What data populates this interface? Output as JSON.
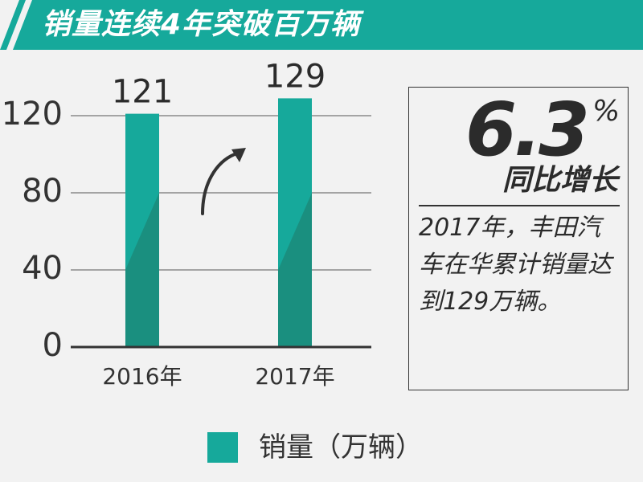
{
  "banner": {
    "title": "销量连续4年突破百万辆",
    "color": "#16a99b"
  },
  "chart_data": {
    "type": "bar",
    "title": "",
    "xlabel": "",
    "ylabel": "",
    "categories": [
      "2016年",
      "2017年"
    ],
    "series": [
      {
        "name": "销量（万辆）",
        "values": [
          121,
          129
        ]
      }
    ],
    "data_labels": [
      "121",
      "129"
    ],
    "yticks": [
      "0",
      "40",
      "80",
      "120"
    ],
    "ylim": [
      0,
      130
    ],
    "grid": true,
    "legend": "bottom",
    "bar_color": "#16a99b",
    "bar_shadow_color": "#1a8f7f",
    "annotation_icon": "curved-up-arrow-icon"
  },
  "stat": {
    "value": "6.3",
    "unit": "%",
    "label": "同比增长",
    "desc": "2017年，丰田汽车在华累计销量达到129万辆。"
  },
  "legend": {
    "label": "销量（万辆）"
  }
}
